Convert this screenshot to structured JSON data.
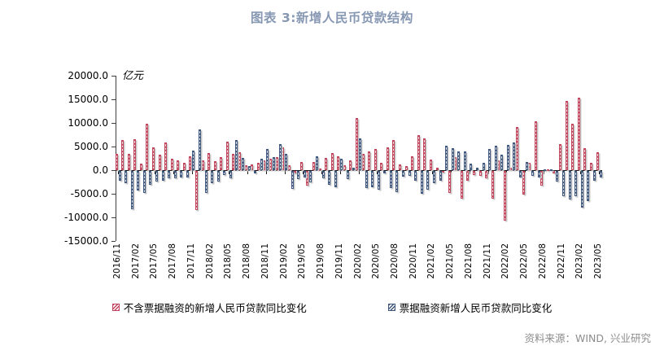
{
  "title": "图表 3:新增人民币贷款结构",
  "source": "资料来源：WIND, 兴业研究",
  "colors": {
    "red_series": "#c2455e",
    "blue_series": "#40577f",
    "title_text": "#8798b3",
    "source_text": "#8c8c8c"
  },
  "chart_data": {
    "type": "bar",
    "title": "图表 3:新增人民币贷款结构",
    "unit_label": "亿元",
    "xlabel": "",
    "ylabel": "亿元",
    "ylim": [
      -15000,
      20000
    ],
    "ytick_step": 5000,
    "y_tick_labels": [
      "20000.0",
      "15000.0",
      "10000.0",
      "5000.0",
      "0.0",
      "-5000.0",
      "-10000.0",
      "-15000.0"
    ],
    "grid": false,
    "legend_position": "bottom",
    "x_label_every": 3,
    "categories": [
      "2016/11",
      "2016/12",
      "2017/01",
      "2017/02",
      "2017/03",
      "2017/04",
      "2017/05",
      "2017/06",
      "2017/07",
      "2017/08",
      "2017/09",
      "2017/10",
      "2017/11",
      "2017/12",
      "2018/01",
      "2018/02",
      "2018/03",
      "2018/04",
      "2018/05",
      "2018/06",
      "2018/07",
      "2018/08",
      "2018/09",
      "2018/10",
      "2018/11",
      "2018/12",
      "2019/01",
      "2019/02",
      "2019/03",
      "2019/04",
      "2019/05",
      "2019/06",
      "2019/07",
      "2019/08",
      "2019/09",
      "2019/10",
      "2019/11",
      "2019/12",
      "2020/01",
      "2020/02",
      "2020/03",
      "2020/04",
      "2020/05",
      "2020/06",
      "2020/07",
      "2020/08",
      "2020/09",
      "2020/10",
      "2020/11",
      "2020/12",
      "2021/01",
      "2021/02",
      "2021/03",
      "2021/04",
      "2021/05",
      "2021/06",
      "2021/07",
      "2021/08",
      "2021/09",
      "2021/10",
      "2021/11",
      "2021/12",
      "2022/01",
      "2022/02",
      "2022/03",
      "2022/04",
      "2022/05",
      "2022/06",
      "2022/07",
      "2022/08",
      "2022/09",
      "2022/10",
      "2022/11",
      "2022/12",
      "2023/01",
      "2023/02",
      "2023/03",
      "2023/04",
      "2023/05"
    ],
    "series": [
      {
        "name": "不含票据融资的新增人民币贷款同比变化",
        "color": "#c2455e",
        "values": [
          3400,
          6400,
          3400,
          6600,
          1400,
          9900,
          4800,
          3200,
          5800,
          2500,
          2000,
          1600,
          2900,
          -8300,
          2100,
          3700,
          1900,
          2700,
          6100,
          3500,
          3800,
          1000,
          1200,
          1500,
          2000,
          2500,
          2800,
          4800,
          1000,
          -600,
          1800,
          -3100,
          1800,
          400,
          2600,
          3700,
          2900,
          1000,
          2100,
          11000,
          3500,
          4000,
          4400,
          1600,
          4800,
          6400,
          1200,
          800,
          2900,
          7500,
          6700,
          2300,
          500,
          -300,
          -4600,
          2800,
          -5900,
          -2100,
          -800,
          -1100,
          -1600,
          -5900,
          2000,
          -10500,
          600,
          9100,
          -5000,
          1500,
          10300,
          -3100,
          250,
          -500,
          5500,
          14700,
          9800,
          15300,
          4700,
          1600,
          3800
        ]
      },
      {
        "name": "票据融资新增人民币贷款同比变化",
        "color": "#40577f",
        "values": [
          -2100,
          -2600,
          -8100,
          -4200,
          -4600,
          -2900,
          -2300,
          -2000,
          -1600,
          -1500,
          -1300,
          -1300,
          4100,
          8600,
          -4700,
          -2500,
          -2200,
          -900,
          -1500,
          6300,
          2600,
          900,
          -600,
          2400,
          4500,
          2800,
          5500,
          3500,
          -3800,
          -1800,
          -1400,
          -2400,
          2900,
          -1500,
          -3000,
          -3400,
          2500,
          -1700,
          500,
          6700,
          -3700,
          -3400,
          -4000,
          -600,
          -3700,
          -4500,
          -1200,
          -1000,
          -2000,
          -4900,
          -4000,
          -2500,
          -2100,
          5200,
          4600,
          3900,
          3900,
          1300,
          600,
          1600,
          4500,
          5100,
          3300,
          5300,
          5800,
          -1400,
          1800,
          -1000,
          -1400,
          250,
          250,
          -2200,
          -5400,
          -6000,
          -5400,
          -7700,
          -6300,
          -2000,
          -1400
        ]
      }
    ]
  }
}
